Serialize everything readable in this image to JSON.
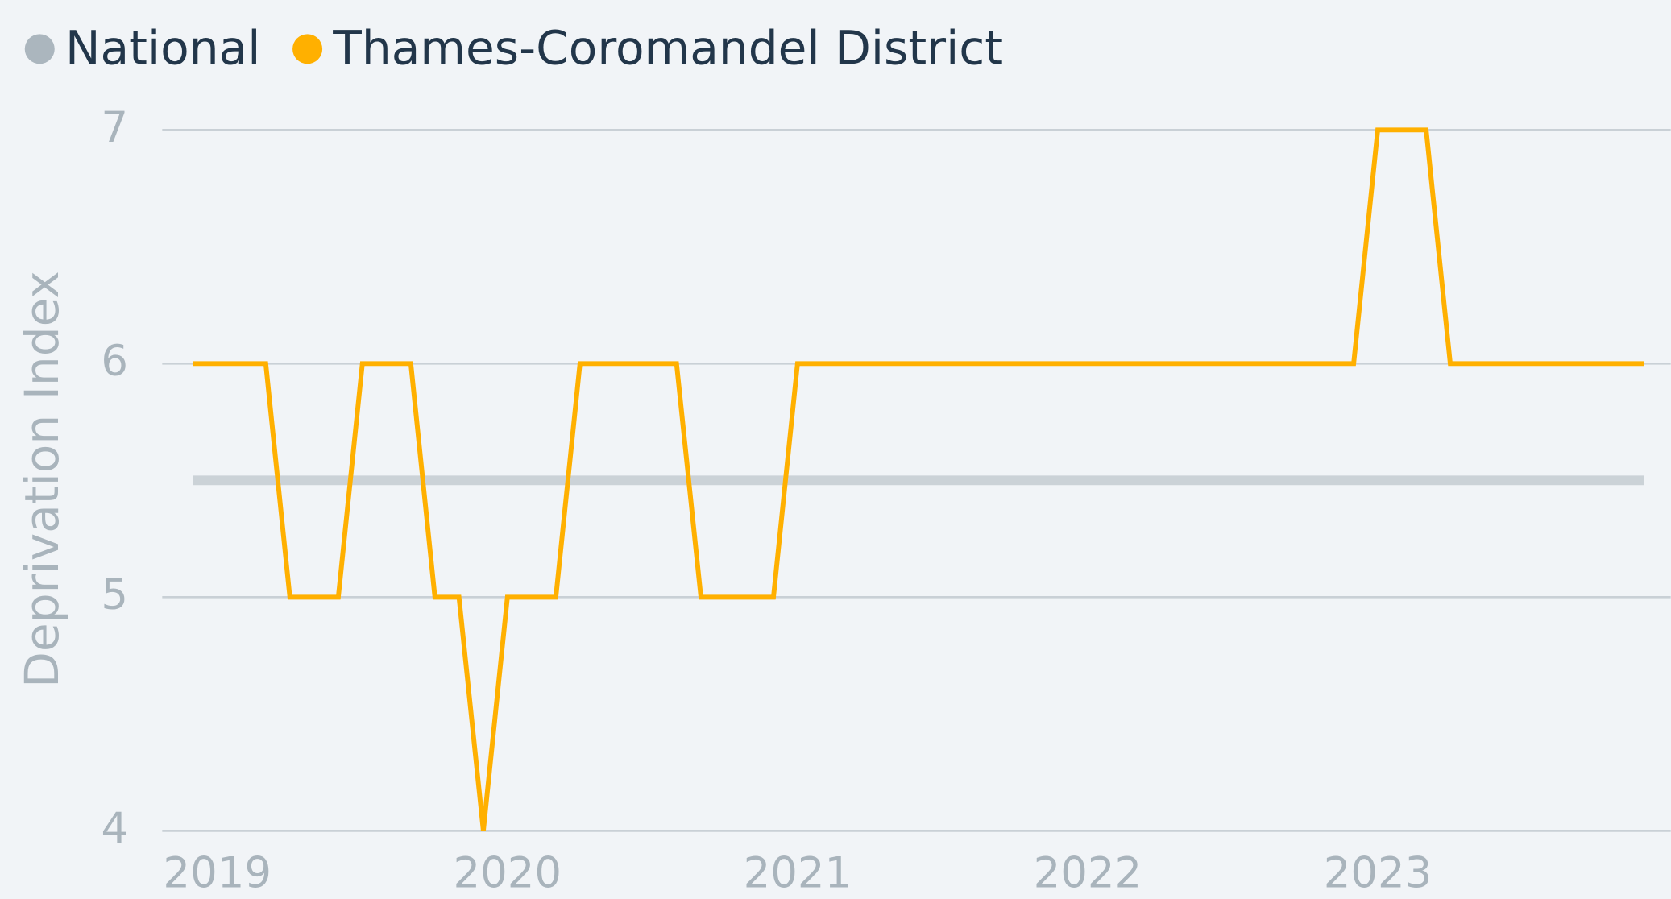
{
  "chart_data": {
    "type": "line",
    "y_label": "Deprivation Index",
    "x": [
      2018.917,
      2019,
      2019.083,
      2019.167,
      2019.25,
      2019.333,
      2019.417,
      2019.5,
      2019.583,
      2019.667,
      2019.75,
      2019.833,
      2019.917,
      2020,
      2020.083,
      2020.167,
      2020.25,
      2020.333,
      2020.417,
      2020.5,
      2020.583,
      2020.667,
      2020.75,
      2020.833,
      2020.917,
      2021,
      2021.083,
      2021.167,
      2021.25,
      2021.333,
      2021.417,
      2021.5,
      2021.583,
      2021.667,
      2021.75,
      2021.833,
      2021.917,
      2022,
      2022.083,
      2022.167,
      2022.25,
      2022.333,
      2022.417,
      2022.5,
      2022.583,
      2022.667,
      2022.75,
      2022.833,
      2022.917,
      2023,
      2023.083,
      2023.167,
      2023.25,
      2023.333,
      2023.417,
      2023.5,
      2023.583,
      2023.667,
      2023.75,
      2023.833,
      2023.917
    ],
    "series": [
      {
        "name": "National",
        "color": "#abb6be",
        "values": [
          5.5,
          5.5,
          5.5,
          5.5,
          5.5,
          5.5,
          5.5,
          5.5,
          5.5,
          5.5,
          5.5,
          5.5,
          5.5,
          5.5,
          5.5,
          5.5,
          5.5,
          5.5,
          5.5,
          5.5,
          5.5,
          5.5,
          5.5,
          5.5,
          5.5,
          5.5,
          5.5,
          5.5,
          5.5,
          5.5,
          5.5,
          5.5,
          5.5,
          5.5,
          5.5,
          5.5,
          5.5,
          5.5,
          5.5,
          5.5,
          5.5,
          5.5,
          5.5,
          5.5,
          5.5,
          5.5,
          5.5,
          5.5,
          5.5,
          5.5,
          5.5,
          5.5,
          5.5,
          5.5,
          5.5,
          5.5,
          5.5,
          5.5,
          5.5,
          5.5,
          5.5
        ]
      },
      {
        "name": "Thames-Coromandel District",
        "color": "#ffb000",
        "values": [
          6,
          6,
          6,
          6,
          5,
          5,
          5,
          6,
          6,
          6,
          5,
          5,
          4,
          5,
          5,
          5,
          6,
          6,
          6,
          6,
          6,
          5,
          5,
          5,
          5,
          6,
          6,
          6,
          6,
          6,
          6,
          6,
          6,
          6,
          6,
          6,
          6,
          6,
          6,
          6,
          6,
          6,
          6,
          6,
          6,
          6,
          6,
          6,
          6,
          7,
          7,
          7,
          6,
          6,
          6,
          6,
          6,
          6,
          6,
          6,
          6
        ]
      }
    ],
    "xlim": [
      2018.81,
      2024.01
    ],
    "xticks": [
      2019,
      2020,
      2021,
      2022,
      2023
    ],
    "ylim": [
      4,
      7
    ],
    "yticks": [
      4,
      5,
      6,
      7
    ],
    "grid": true,
    "legend": "top-left"
  }
}
